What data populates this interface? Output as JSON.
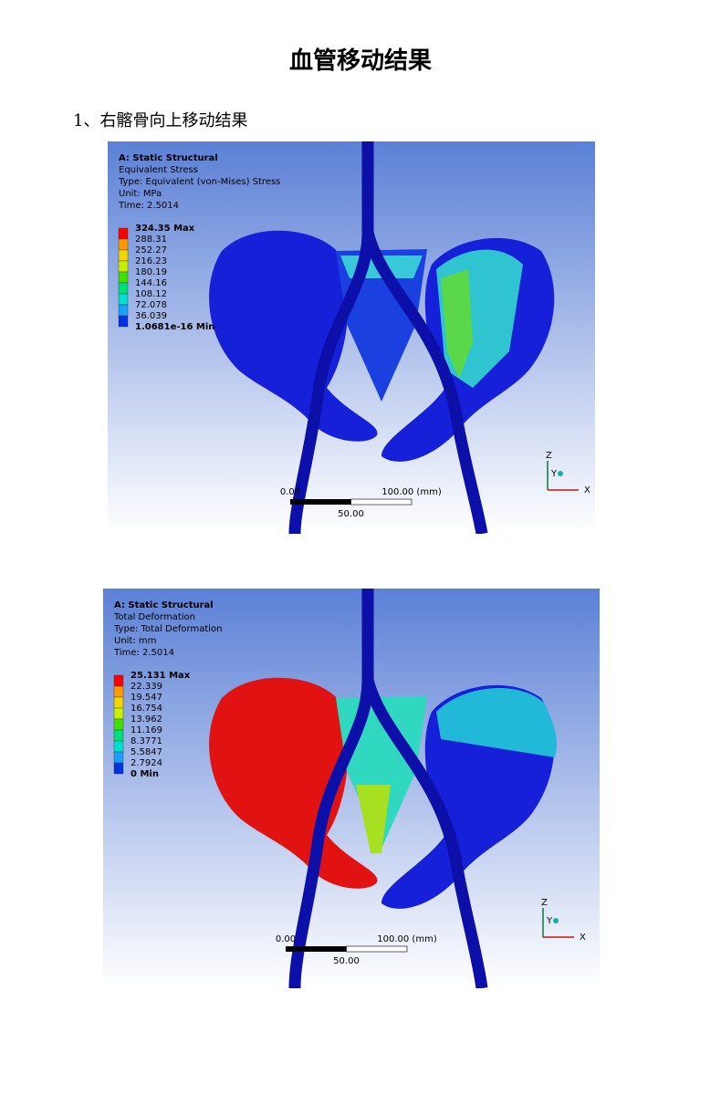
{
  "title": "血管移动结果",
  "section": "1、右髂骨向上移动结果",
  "figures": [
    {
      "header": [
        "A: Static Structural",
        "Equivalent Stress",
        "Type: Equivalent (von-Mises) Stress",
        "Unit: MPa",
        "Time: 2.5014"
      ],
      "legend": [
        "324.35 Max",
        "288.31",
        "252.27",
        "216.23",
        "180.19",
        "144.16",
        "108.12",
        "72.078",
        "36.039",
        "1.0681e-16 Min"
      ],
      "scale": {
        "start": "0.00",
        "end": "100.00 (mm)",
        "mid": "50.00"
      },
      "axes": [
        "Z",
        "Y",
        "X"
      ]
    },
    {
      "header": [
        "A: Static Structural",
        "Total Deformation",
        "Type: Total Deformation",
        "Unit: mm",
        "Time: 2.5014"
      ],
      "legend": [
        "25.131 Max",
        "22.339",
        "19.547",
        "16.754",
        "13.962",
        "11.169",
        "8.3771",
        "5.5847",
        "2.7924",
        "0 Min"
      ],
      "scale": {
        "start": "0.00",
        "end": "100.00 (mm)",
        "mid": "50.00"
      },
      "axes": [
        "Z",
        "Y",
        "X"
      ]
    }
  ]
}
